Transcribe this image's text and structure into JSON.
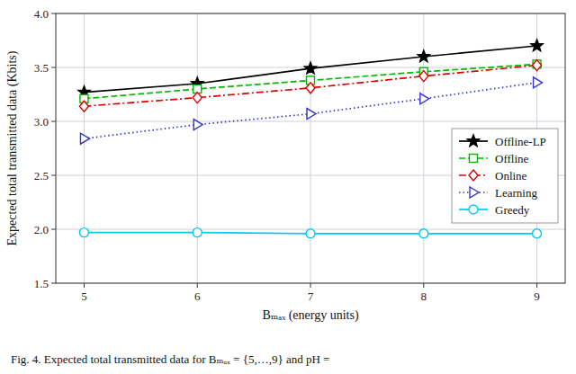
{
  "chart_data": {
    "type": "line",
    "x": [
      5,
      6,
      7,
      8,
      9
    ],
    "series": [
      {
        "name": "Offline-LP",
        "color": "#000000",
        "marker": "star",
        "line_style": "solid",
        "values": [
          3.27,
          3.35,
          3.49,
          3.6,
          3.7
        ]
      },
      {
        "name": "Offline",
        "color": "#00bb00",
        "marker": "square",
        "line_style": "dashed",
        "values": [
          3.21,
          3.3,
          3.38,
          3.46,
          3.53
        ]
      },
      {
        "name": "Online",
        "color": "#dd0000",
        "marker": "diamond",
        "line_style": "dashdot",
        "values": [
          3.14,
          3.22,
          3.31,
          3.42,
          3.52
        ]
      },
      {
        "name": "Learning",
        "color": "#3333cc",
        "marker": "triangle-right",
        "line_style": "dotted",
        "values": [
          2.84,
          2.97,
          3.07,
          3.21,
          3.36
        ]
      },
      {
        "name": "Greedy",
        "color": "#00ccee",
        "marker": "circle",
        "line_style": "solid",
        "values": [
          1.97,
          1.97,
          1.96,
          1.96,
          1.96
        ]
      }
    ],
    "xlabel": "Bₘₐₓ (energy units)",
    "ylabel": "Expected total transmitted data (Kbits)",
    "caption": "Fig. 4.   Expected total transmitted data for Bₘₐₓ = {5,…,9} and pH =",
    "xlim": [
      4.75,
      9.25
    ],
    "ylim": [
      1.5,
      4.0
    ],
    "xticks": [
      5,
      6,
      7,
      8,
      9
    ],
    "yticks": [
      1.5,
      {
        "value": 2,
        "label": "2.0"
      },
      2.5,
      {
        "value": 3,
        "label": "3.0"
      },
      3.5,
      {
        "value": 4,
        "label": "4.0"
      }
    ],
    "grid": true,
    "legend": "lower right"
  }
}
